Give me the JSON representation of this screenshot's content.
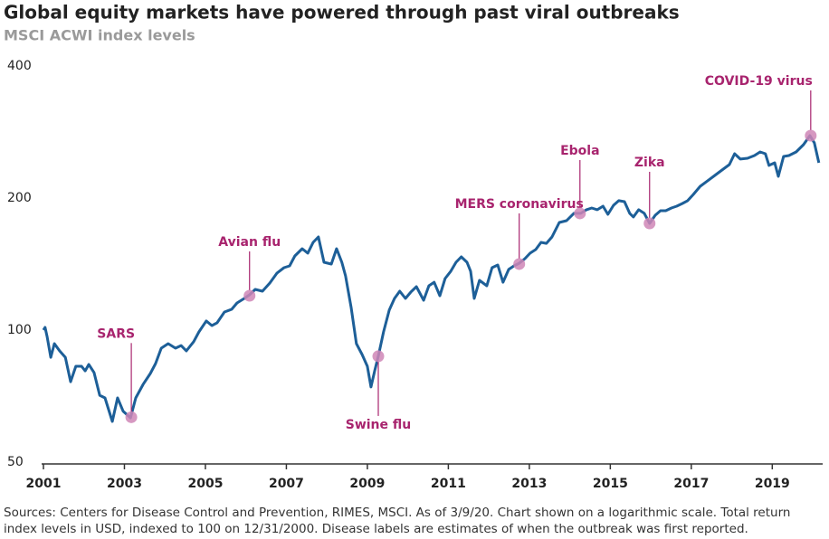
{
  "chart_data": {
    "type": "line",
    "title": "Global equity markets have powered through past viral outbreaks",
    "subtitle": "MSCI ACWI index levels",
    "footnote": "Sources: Centers for Disease Control and Prevention, RIMES, MSCI. As of 3/9/20. Chart shown on a logarithmic scale. Total return index levels in USD, indexed to 100 on 12/31/2000. Disease labels are estimates of when the outbreak was first reported.",
    "color": "#1d5f98",
    "y_scale": "log",
    "grid": false,
    "xlim": [
      2001,
      2020.2
    ],
    "xticks": [
      2001,
      2003,
      2005,
      2007,
      2009,
      2011,
      2013,
      2015,
      2017,
      2019
    ],
    "ylim": [
      50,
      400
    ],
    "yticks": [
      50,
      100,
      200,
      400
    ],
    "x": [
      2001.0,
      2001.04,
      2001.09,
      2001.18,
      2001.27,
      2001.4,
      2001.54,
      2001.67,
      2001.8,
      2001.94,
      2002.03,
      2002.12,
      2002.25,
      2002.39,
      2002.52,
      2002.7,
      2002.83,
      2002.97,
      2003.15,
      2003.28,
      2003.46,
      2003.64,
      2003.77,
      2003.91,
      2004.08,
      2004.26,
      2004.4,
      2004.53,
      2004.71,
      2004.84,
      2005.02,
      2005.16,
      2005.29,
      2005.47,
      2005.65,
      2005.78,
      2005.96,
      2006.09,
      2006.23,
      2006.41,
      2006.59,
      2006.77,
      2006.94,
      2007.08,
      2007.21,
      2007.39,
      2007.53,
      2007.66,
      2007.79,
      2007.93,
      2008.11,
      2008.24,
      2008.37,
      2008.46,
      2008.6,
      2008.73,
      2008.87,
      2009.0,
      2009.09,
      2009.18,
      2009.27,
      2009.4,
      2009.54,
      2009.67,
      2009.8,
      2009.94,
      2010.07,
      2010.21,
      2010.39,
      2010.52,
      2010.65,
      2010.79,
      2010.92,
      2011.06,
      2011.19,
      2011.32,
      2011.46,
      2011.55,
      2011.64,
      2011.77,
      2011.95,
      2012.08,
      2012.22,
      2012.35,
      2012.49,
      2012.62,
      2012.75,
      2012.89,
      2013.02,
      2013.16,
      2013.29,
      2013.42,
      2013.56,
      2013.74,
      2013.92,
      2014.1,
      2014.27,
      2014.41,
      2014.54,
      2014.68,
      2014.82,
      2014.94,
      2015.08,
      2015.21,
      2015.35,
      2015.48,
      2015.57,
      2015.7,
      2015.84,
      2015.97,
      2016.11,
      2016.24,
      2016.37,
      2016.51,
      2016.64,
      2016.78,
      2016.91,
      2017.05,
      2017.22,
      2017.4,
      2017.58,
      2017.76,
      2017.94,
      2018.07,
      2018.21,
      2018.39,
      2018.56,
      2018.7,
      2018.83,
      2018.92,
      2019.06,
      2019.15,
      2019.28,
      2019.41,
      2019.59,
      2019.77,
      2019.93,
      2020.04,
      2020.15
    ],
    "values": [
      101.0,
      102.4,
      97.7,
      87.5,
      94.0,
      90.5,
      87.5,
      77.0,
      83.5,
      83.5,
      81.5,
      84.3,
      80.8,
      71.7,
      70.7,
      62.5,
      70.7,
      65.9,
      63.7,
      70.7,
      75.9,
      80.4,
      84.7,
      91.8,
      94.0,
      91.8,
      93.1,
      90.5,
      95.0,
      100,
      105.9,
      103.4,
      104.9,
      111.0,
      112.6,
      116.4,
      119.2,
      121.5,
      125.0,
      123.8,
      129.2,
      136.2,
      140.1,
      141.4,
      149.0,
      154.8,
      151.2,
      160.0,
      164.6,
      144.1,
      142.8,
      154.8,
      144.1,
      134.2,
      113.7,
      94.0,
      88.8,
      83.5,
      74.9,
      81.5,
      88.0,
      100,
      112.1,
      119.2,
      123.8,
      119.2,
      123.2,
      126.8,
      118.1,
      127.4,
      129.8,
      120.9,
      132.3,
      137.5,
      144.1,
      148.3,
      144.1,
      137.5,
      119.2,
      131.1,
      127.4,
      140.1,
      142.1,
      129.8,
      138.8,
      141.4,
      143.4,
      146.9,
      151.2,
      154.1,
      160.0,
      159.2,
      164.6,
      177.6,
      179.3,
      186.3,
      186.3,
      189.9,
      191.6,
      189.9,
      193.5,
      185.4,
      194.4,
      199.1,
      198.1,
      186.3,
      182.8,
      189.9,
      186.3,
      176.8,
      184.5,
      188.9,
      188.9,
      191.6,
      193.5,
      196.2,
      199.1,
      205.8,
      214.8,
      220.9,
      227.3,
      233.9,
      240.7,
      254.8,
      247.7,
      248.8,
      252.4,
      257.2,
      254.8,
      239.6,
      243.0,
      226.3,
      251.2,
      252.4,
      257.2,
      267.2,
      280.2,
      269.8,
      243.0
    ],
    "annotation_color": "#a8246e",
    "marker_color": "#cf86b6",
    "annotations": [
      {
        "text": "SARS",
        "x": 2003.17,
        "y": 63.9
      },
      {
        "text": "Avian flu",
        "x": 2006.09,
        "y": 120.9
      },
      {
        "text": "Swine flu",
        "x": 2009.27,
        "y": 88.0
      },
      {
        "text": "MERS coronavirus",
        "x": 2012.75,
        "y": 142.8
      },
      {
        "text": "Ebola",
        "x": 2014.25,
        "y": 186.3
      },
      {
        "text": "Zika",
        "x": 2015.97,
        "y": 176.8
      },
      {
        "text": "COVID-19 virus",
        "x": 2019.95,
        "y": 280.2
      }
    ]
  }
}
